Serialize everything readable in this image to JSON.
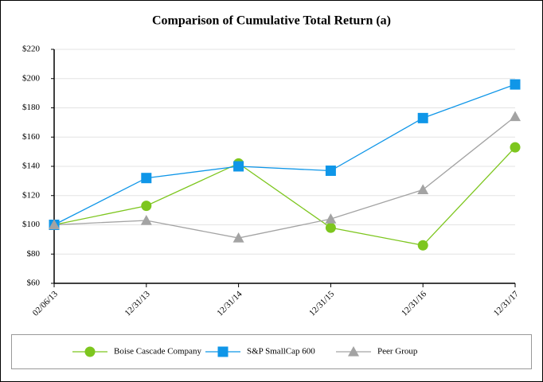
{
  "chart_data": {
    "type": "line",
    "title": "Comparison of Cumulative Total Return (a)",
    "categories": [
      "02/06/13",
      "12/31/13",
      "12/31/14",
      "12/31/15",
      "12/31/16",
      "12/31/17"
    ],
    "series": [
      {
        "name": "Boise Cascade Company",
        "color": "#7dc61e",
        "marker": "circle",
        "values": [
          100,
          113,
          142,
          98,
          86,
          153
        ]
      },
      {
        "name": "S&P SmallCap 600",
        "color": "#0f96e8",
        "marker": "square",
        "values": [
          100,
          132,
          140,
          137,
          173,
          196
        ]
      },
      {
        "name": "Peer Group",
        "color": "#a3a3a3",
        "marker": "triangle",
        "values": [
          100,
          103,
          91,
          104,
          124,
          174
        ]
      }
    ],
    "ylim": [
      60,
      220
    ],
    "yticks": [
      {
        "value": 60,
        "label": "$60"
      },
      {
        "value": 80,
        "label": "$80"
      },
      {
        "value": 100,
        "label": "$100"
      },
      {
        "value": 120,
        "label": "$120"
      },
      {
        "value": 140,
        "label": "$140"
      },
      {
        "value": 160,
        "label": "$160"
      },
      {
        "value": 180,
        "label": "$180"
      },
      {
        "value": 200,
        "label": "$200"
      },
      {
        "value": 220,
        "label": "$220"
      }
    ],
    "grid": true,
    "legend": "bottom"
  }
}
